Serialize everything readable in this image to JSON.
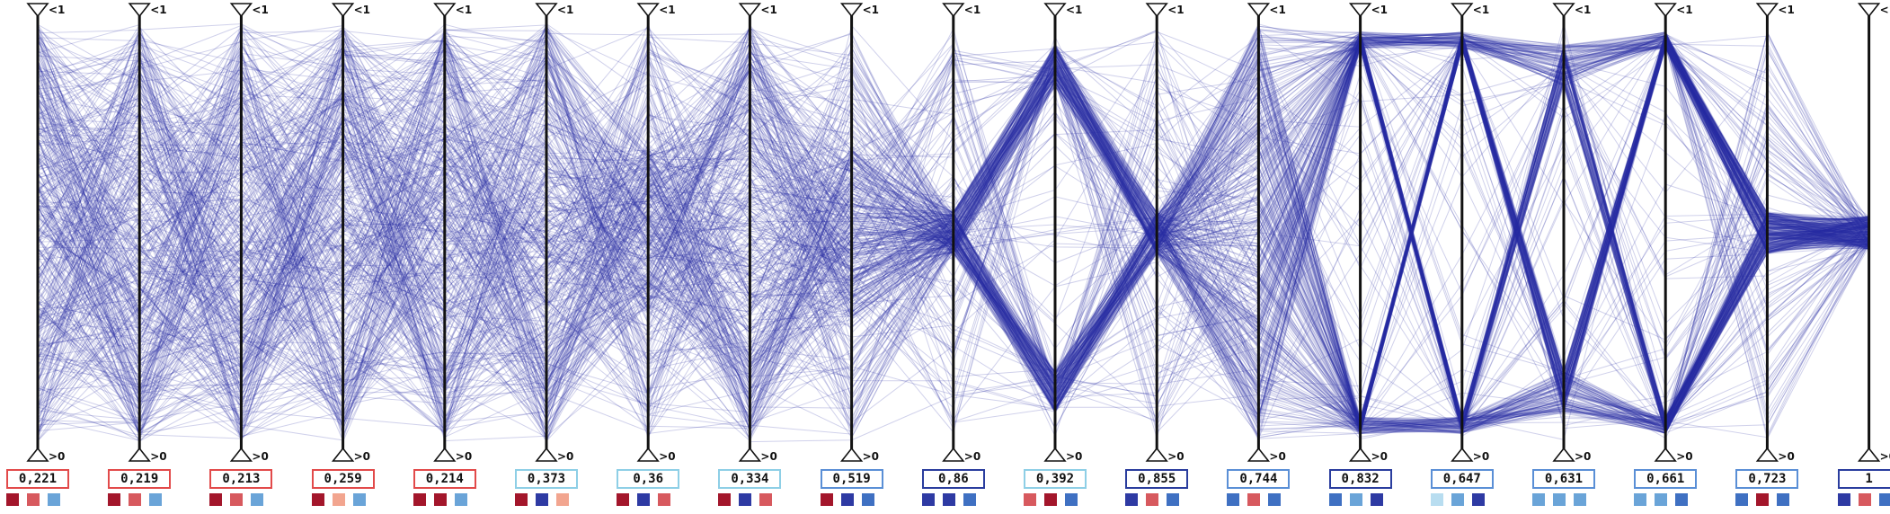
{
  "colors": {
    "line": "#2b2fa6",
    "axis": "#111111",
    "dark_red": "#a3162b",
    "mid_red": "#d7595e",
    "light_red": "#f2a58f",
    "pale_blue": "#b8ddf0",
    "light_blue": "#6aa4d8",
    "mid_blue": "#3f70c2",
    "dark_blue": "#2e3aa3",
    "box_red": "#e24a4a",
    "box_light_blue": "#8ecfe6",
    "box_mid_blue": "#5a8fd6",
    "box_dark_blue": "#2a3d9e"
  },
  "axis_top_label": "<1",
  "axis_bottom_label": ">0",
  "chart_data": {
    "type": "parallel_coordinates",
    "axis_count": 19,
    "yrange": [
      0,
      1
    ],
    "axes": [
      {
        "value": "0,221",
        "box_color": "box_red",
        "swatches": [
          "dark_red",
          "mid_red",
          "light_blue"
        ],
        "pattern": "uniform"
      },
      {
        "value": "0,219",
        "box_color": "box_red",
        "swatches": [
          "dark_red",
          "mid_red",
          "light_blue"
        ],
        "pattern": "uniform"
      },
      {
        "value": "0,213",
        "box_color": "box_red",
        "swatches": [
          "dark_red",
          "mid_red",
          "light_blue"
        ],
        "pattern": "uniform"
      },
      {
        "value": "0,259",
        "box_color": "box_red",
        "swatches": [
          "dark_red",
          "light_red",
          "light_blue"
        ],
        "pattern": "uniform"
      },
      {
        "value": "0,214",
        "box_color": "box_red",
        "swatches": [
          "dark_red",
          "dark_red",
          "light_blue"
        ],
        "pattern": "uniform"
      },
      {
        "value": "0,373",
        "box_color": "box_light_blue",
        "swatches": [
          "dark_red",
          "dark_blue",
          "light_red"
        ],
        "pattern": "uniform"
      },
      {
        "value": "0,36",
        "box_color": "box_light_blue",
        "swatches": [
          "dark_red",
          "dark_blue",
          "mid_red"
        ],
        "pattern": "x_center"
      },
      {
        "value": "0,334",
        "box_color": "box_light_blue",
        "swatches": [
          "dark_red",
          "dark_blue",
          "mid_red"
        ],
        "pattern": "uniform"
      },
      {
        "value": "0,519",
        "box_color": "box_mid_blue",
        "swatches": [
          "dark_red",
          "dark_blue",
          "mid_blue"
        ],
        "pattern": "x_center"
      },
      {
        "value": "0,86",
        "box_color": "box_dark_blue",
        "swatches": [
          "dark_blue",
          "dark_blue",
          "mid_blue"
        ],
        "pattern": "to_center"
      },
      {
        "value": "0,392",
        "box_color": "box_light_blue",
        "swatches": [
          "mid_red",
          "dark_red",
          "mid_blue"
        ],
        "pattern": "two_clusters"
      },
      {
        "value": "0,855",
        "box_color": "box_dark_blue",
        "swatches": [
          "dark_blue",
          "mid_red",
          "mid_blue"
        ],
        "pattern": "to_center"
      },
      {
        "value": "0,744",
        "box_color": "box_mid_blue",
        "swatches": [
          "mid_blue",
          "mid_red",
          "mid_blue"
        ],
        "pattern": "spread"
      },
      {
        "value": "0,832",
        "box_color": "box_dark_blue",
        "swatches": [
          "mid_blue",
          "light_blue",
          "dark_blue"
        ],
        "pattern": "ends"
      },
      {
        "value": "0,647",
        "box_color": "box_mid_blue",
        "swatches": [
          "pale_blue",
          "light_blue",
          "dark_blue"
        ],
        "pattern": "ends"
      },
      {
        "value": "0,631",
        "box_color": "box_mid_blue",
        "swatches": [
          "light_blue",
          "light_blue",
          "light_blue"
        ],
        "pattern": "two_clusters"
      },
      {
        "value": "0,661",
        "box_color": "box_mid_blue",
        "swatches": [
          "light_blue",
          "light_blue",
          "mid_blue"
        ],
        "pattern": "ends"
      },
      {
        "value": "0,723",
        "box_color": "box_mid_blue",
        "swatches": [
          "mid_blue",
          "dark_red",
          "mid_blue"
        ],
        "pattern": "to_center"
      },
      {
        "value": "1",
        "box_color": "box_dark_blue",
        "swatches": [
          "dark_blue",
          "mid_red",
          "mid_blue"
        ],
        "pattern": "center"
      }
    ]
  }
}
